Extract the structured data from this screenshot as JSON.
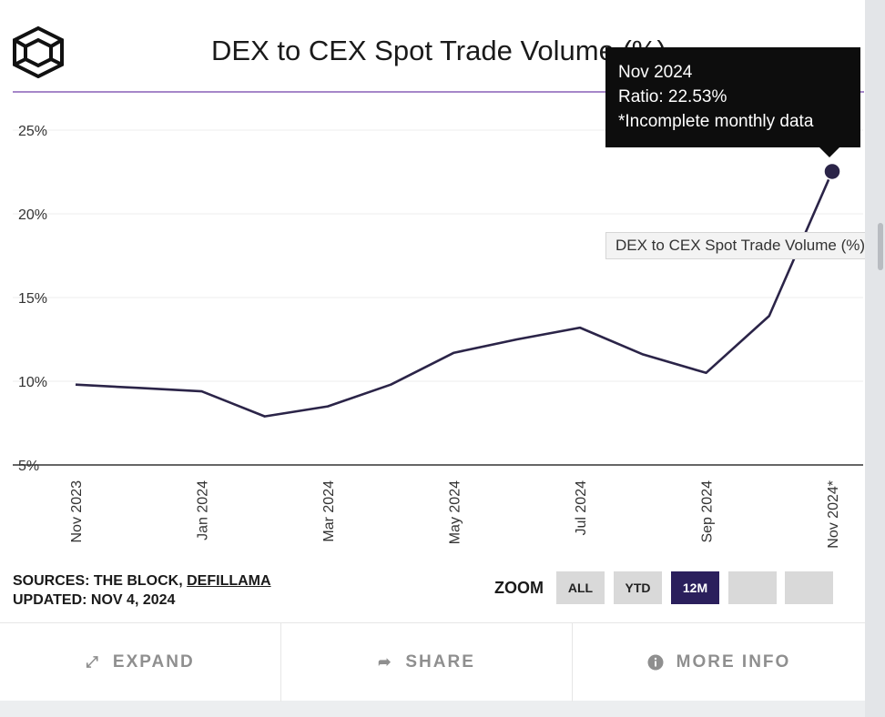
{
  "header": {
    "title": "DEX to CEX Spot Trade Volume (%)"
  },
  "tooltip": {
    "line1": "Nov 2024",
    "line2": "Ratio: 22.53%",
    "line3": "*Incomplete monthly data"
  },
  "series_label": "DEX to CEX Spot Trade Volume (%)",
  "chart_data": {
    "type": "line",
    "title": "DEX to CEX Spot Trade Volume (%)",
    "xlabel": "",
    "ylabel": "",
    "ylim": [
      5,
      25
    ],
    "y_ticks": [
      "25%",
      "20%",
      "15%",
      "10%",
      "5%"
    ],
    "y_tick_values": [
      25,
      20,
      15,
      10,
      5
    ],
    "x_tick_labels": [
      "Nov 2023",
      "Jan 2024",
      "Mar 2024",
      "May 2024",
      "Jul 2024",
      "Sep 2024",
      "Nov 2024*"
    ],
    "x_tick_indices": [
      0,
      2,
      4,
      6,
      8,
      10,
      12
    ],
    "grid": true,
    "series": [
      {
        "name": "DEX to CEX Spot Trade Volume (%)",
        "x": [
          "2023-11",
          "2023-12",
          "2024-01",
          "2024-02",
          "2024-03",
          "2024-04",
          "2024-05",
          "2024-06",
          "2024-07",
          "2024-08",
          "2024-09",
          "2024-10",
          "2024-11"
        ],
        "values": [
          9.8,
          9.6,
          9.4,
          7.9,
          8.5,
          9.8,
          11.7,
          12.5,
          13.2,
          11.6,
          10.5,
          13.9,
          22.53
        ],
        "color": "#2b2448"
      }
    ],
    "highlight_index": 12
  },
  "sources": {
    "prefix": "SOURCES: THE BLOCK, ",
    "link": "DEFILLAMA",
    "updated": "UPDATED: NOV 4, 2024"
  },
  "zoom": {
    "label": "ZOOM",
    "buttons": [
      "ALL",
      "YTD",
      "12M",
      "",
      ""
    ],
    "active": "12M",
    "active_color": "#2b1f5c"
  },
  "footer": {
    "expand": "EXPAND",
    "share": "SHARE",
    "more_info": "MORE INFO"
  }
}
